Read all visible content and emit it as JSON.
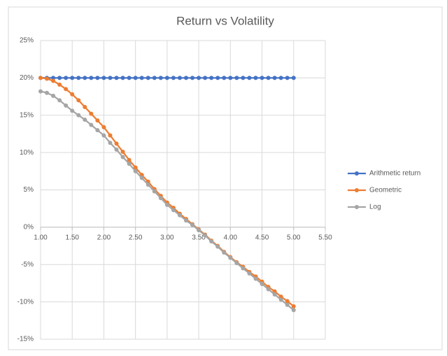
{
  "chart_data": {
    "type": "line",
    "title": "Return vs Volatility",
    "x": [
      1.0,
      1.1,
      1.2,
      1.3,
      1.4,
      1.5,
      1.6,
      1.7,
      1.8,
      1.9,
      2.0,
      2.1,
      2.2,
      2.3,
      2.4,
      2.5,
      2.6,
      2.7,
      2.8,
      2.9,
      3.0,
      3.1,
      3.2,
      3.3,
      3.4,
      3.5,
      3.6,
      3.7,
      3.8,
      3.9,
      4.0,
      4.1,
      4.2,
      4.3,
      4.4,
      4.5,
      4.6,
      4.7,
      4.8,
      4.9,
      5.0
    ],
    "series": [
      {
        "name": "Arithmetic return",
        "color": "#4472c4",
        "values": [
          20,
          20,
          20,
          20,
          20,
          20,
          20,
          20,
          20,
          20,
          20,
          20,
          20,
          20,
          20,
          20,
          20,
          20,
          20,
          20,
          20,
          20,
          20,
          20,
          20,
          20,
          20,
          20,
          20,
          20,
          20,
          20,
          20,
          20,
          20,
          20,
          20,
          20,
          20,
          20,
          20
        ]
      },
      {
        "name": "Geometric",
        "color": "#ed7d31",
        "values": [
          20.0,
          19.9,
          19.6,
          19.1,
          18.5,
          17.8,
          17.0,
          16.1,
          15.2,
          14.3,
          13.4,
          12.3,
          11.2,
          10.1,
          9.0,
          8.0,
          7.0,
          6.1,
          5.1,
          4.2,
          3.3,
          2.6,
          1.8,
          1.1,
          0.4,
          -0.3,
          -1.0,
          -1.8,
          -2.5,
          -3.3,
          -4.0,
          -4.7,
          -5.3,
          -6.0,
          -6.6,
          -7.3,
          -8.0,
          -8.6,
          -9.3,
          -9.9,
          -10.6
        ]
      },
      {
        "name": "Log",
        "color": "#a5a5a5",
        "values": [
          18.2,
          18.0,
          17.6,
          17.0,
          16.3,
          15.6,
          15.0,
          14.4,
          13.7,
          13.0,
          12.3,
          11.3,
          10.4,
          9.4,
          8.5,
          7.5,
          6.6,
          5.7,
          4.8,
          3.9,
          3.0,
          2.3,
          1.6,
          0.9,
          0.3,
          -0.4,
          -1.1,
          -1.9,
          -2.6,
          -3.4,
          -4.1,
          -4.8,
          -5.5,
          -6.2,
          -6.9,
          -7.6,
          -8.3,
          -9.0,
          -9.7,
          -10.4,
          -11.1
        ]
      }
    ],
    "xlim": [
      1.0,
      5.5
    ],
    "xticks": [
      {
        "value": 1.0,
        "label": "1.00"
      },
      {
        "value": 1.5,
        "label": "1.50"
      },
      {
        "value": 2.0,
        "label": "2.00"
      },
      {
        "value": 2.5,
        "label": "2.50"
      },
      {
        "value": 3.0,
        "label": "3.00"
      },
      {
        "value": 3.5,
        "label": "3.50"
      },
      {
        "value": 4.0,
        "label": "4.00"
      },
      {
        "value": 4.5,
        "label": "4.50"
      },
      {
        "value": 5.0,
        "label": "5.00"
      },
      {
        "value": 5.5,
        "label": "5.50"
      }
    ],
    "ylim": [
      -15,
      25
    ],
    "yticks": [
      {
        "value": -15,
        "label": "-15%"
      },
      {
        "value": -10,
        "label": "-10%"
      },
      {
        "value": -5,
        "label": "-5%"
      },
      {
        "value": 0,
        "label": "0%"
      },
      {
        "value": 5,
        "label": "5%"
      },
      {
        "value": 10,
        "label": "10%"
      },
      {
        "value": 15,
        "label": "15%"
      },
      {
        "value": 20,
        "label": "20%"
      },
      {
        "value": 25,
        "label": "25%"
      }
    ],
    "grid": true,
    "legend": "right"
  }
}
